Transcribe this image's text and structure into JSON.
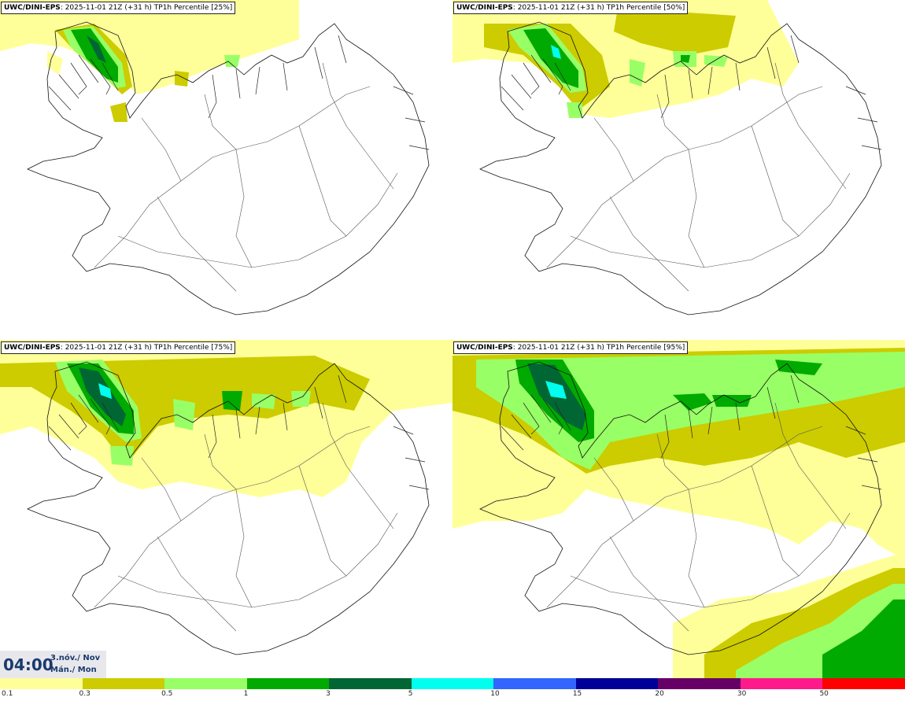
{
  "panels": [
    {
      "model": "UWC/DINI-EPS",
      "info": ": 2025-11-01 21Z (+31 h) TP1h Percentile [25%]",
      "level": 25
    },
    {
      "model": "UWC/DINI-EPS",
      "info": ": 2025-11-01 21Z (+31 h) TP1h Percentile [50%]",
      "level": 50
    },
    {
      "model": "UWC/DINI-EPS",
      "info": ": 2025-11-01 21Z (+31 h) TP1h Percentile [75%]",
      "level": 75
    },
    {
      "model": "UWC/DINI-EPS",
      "info": ": 2025-11-01 21Z (+31 h) TP1h Percentile [95%]",
      "level": 95
    }
  ],
  "time": {
    "clock": "04:00",
    "date_line1": "3.nóv./ Nov",
    "date_line2": "Mán./ Mon"
  },
  "legend": {
    "labels": [
      "0.1",
      "0.3",
      "0.5",
      "1",
      "3",
      "5",
      "10",
      "15",
      "20",
      "30",
      "50"
    ],
    "colors": [
      "#ffff99",
      "#cccc00",
      "#99ff66",
      "#00aa00",
      "#006633",
      "#00ffee",
      "#3366ff",
      "#000099",
      "#660066",
      "#ff1a8c",
      "#ff0000"
    ]
  }
}
